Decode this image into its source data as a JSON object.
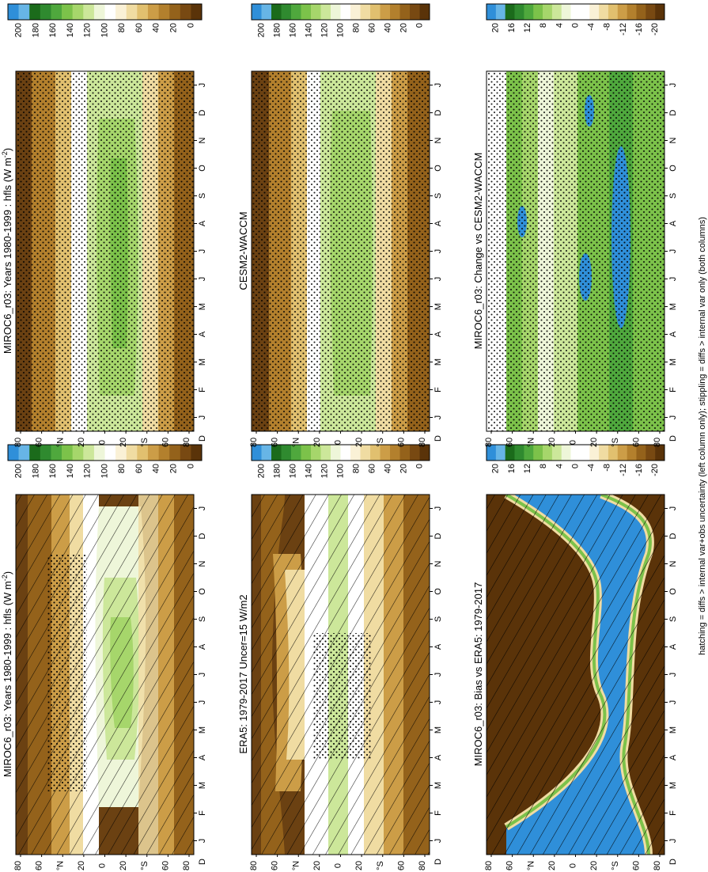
{
  "caption": "hatching = diffs > internal var+obs uncertainty (left column only); stippling = diffs > internal var only (both columns)",
  "months": [
    "J",
    "F",
    "M",
    "A",
    "M",
    "J",
    "J",
    "A",
    "S",
    "O",
    "N",
    "D",
    "J"
  ],
  "month_label_D": "D",
  "lat_labels": [
    "80",
    "60",
    "°N",
    "20",
    "0",
    "20",
    "°S",
    "60",
    "80"
  ],
  "palettes": {
    "abs": [
      "#2f8fd9",
      "#67b5e6",
      "#1b6b1b",
      "#2f8a2f",
      "#4fa83d",
      "#7cc24a",
      "#a6d66b",
      "#cce79a",
      "#eef6d9",
      "#ffffff",
      "#faf1d6",
      "#f0dca2",
      "#e1c06f",
      "#cc9d47",
      "#b3802d",
      "#94621b",
      "#784912",
      "#5a3309"
    ],
    "diff": [
      "#2f8fd9",
      "#67b5e6",
      "#1b6b1b",
      "#2f8a2f",
      "#4fa83d",
      "#7cc24a",
      "#a6d66b",
      "#cce79a",
      "#eef6d9",
      "#ffffff",
      "#ffffff",
      "#faf1d6",
      "#f0dca2",
      "#e1c06f",
      "#cc9d47",
      "#b3802d",
      "#94621b",
      "#784912",
      "#5a3309"
    ]
  },
  "panels": [
    {
      "id": "model-clim",
      "title": "MIROC6_r03: Years 1980-1999 : hfls (W m",
      "title_sup": "-2",
      "title_end": ")",
      "colorbar_ticks": [
        "200",
        "180",
        "160",
        "140",
        "120",
        "100",
        "80",
        "60",
        "40",
        "20",
        "0"
      ]
    },
    {
      "id": "model-clim-2",
      "title": "MIROC6_r03: Years 1980-1999 : hfls (W m",
      "title_sup": "-2",
      "title_end": ")",
      "colorbar_ticks": [
        "200",
        "180",
        "160",
        "140",
        "120",
        "100",
        "80",
        "60",
        "40",
        "20",
        "0"
      ]
    },
    {
      "id": "obs-clim",
      "title": "ERA5: 1979-2017 Uncer=15 W/m2",
      "title_sup": "",
      "title_end": "",
      "colorbar_ticks": [
        "200",
        "180",
        "160",
        "140",
        "120",
        "100",
        "80",
        "60",
        "40",
        "20",
        "0"
      ]
    },
    {
      "id": "ref-clim",
      "title": "CESM2-WACCM",
      "title_sup": "",
      "title_end": "",
      "colorbar_ticks": [
        "200",
        "180",
        "160",
        "140",
        "120",
        "100",
        "80",
        "60",
        "40",
        "20",
        "0"
      ]
    },
    {
      "id": "bias",
      "title": "MIROC6_r03: Bias vs ERA5: 1979-2017",
      "title_sup": "",
      "title_end": "",
      "colorbar_ticks": [
        "20",
        "16",
        "12",
        "8",
        "4",
        "0",
        "-4",
        "-8",
        "-12",
        "-16",
        "-20"
      ]
    },
    {
      "id": "change",
      "title": "MIROC6_r03: Change vs CESM2-WACCM",
      "title_sup": "",
      "title_end": "",
      "colorbar_ticks": [
        "20",
        "16",
        "12",
        "8",
        "4",
        "0",
        "-4",
        "-8",
        "-12",
        "-16",
        "-20"
      ]
    }
  ],
  "chart_data": [
    {
      "type": "heatmap",
      "title": "MIROC6_r03: Years 1980-1999 : hfls (W m-2)",
      "x": [
        "J",
        "F",
        "M",
        "A",
        "M",
        "J",
        "J",
        "A",
        "S",
        "O",
        "N",
        "D",
        "J"
      ],
      "y": [
        80,
        60,
        40,
        20,
        0,
        -20,
        -40,
        -60,
        -80
      ],
      "zlim": [
        0,
        200
      ],
      "colorbar_ticks": [
        200,
        180,
        160,
        140,
        120,
        100,
        80,
        60,
        40,
        20,
        0
      ]
    },
    {
      "type": "heatmap",
      "title": "MIROC6_r03: Years 1980-1999 : hfls (W m-2)",
      "x": [
        "J",
        "F",
        "M",
        "A",
        "M",
        "J",
        "J",
        "A",
        "S",
        "O",
        "N",
        "D",
        "J"
      ],
      "y": [
        80,
        60,
        40,
        20,
        0,
        -20,
        -40,
        -60,
        -80
      ],
      "zlim": [
        0,
        200
      ],
      "colorbar_ticks": [
        200,
        180,
        160,
        140,
        120,
        100,
        80,
        60,
        40,
        20,
        0
      ]
    },
    {
      "type": "heatmap",
      "title": "ERA5: 1979-2017 Uncer=15 W/m2",
      "x": [
        "J",
        "F",
        "M",
        "A",
        "M",
        "J",
        "J",
        "A",
        "S",
        "O",
        "N",
        "D",
        "J"
      ],
      "y": [
        80,
        60,
        40,
        20,
        0,
        -20,
        -40,
        -60,
        -80
      ],
      "zlim": [
        0,
        200
      ],
      "colorbar_ticks": [
        200,
        180,
        160,
        140,
        120,
        100,
        80,
        60,
        40,
        20,
        0
      ]
    },
    {
      "type": "heatmap",
      "title": "CESM2-WACCM",
      "x": [
        "J",
        "F",
        "M",
        "A",
        "M",
        "J",
        "J",
        "A",
        "S",
        "O",
        "N",
        "D",
        "J"
      ],
      "y": [
        80,
        60,
        40,
        20,
        0,
        -20,
        -40,
        -60,
        -80
      ],
      "zlim": [
        0,
        200
      ],
      "colorbar_ticks": [
        200,
        180,
        160,
        140,
        120,
        100,
        80,
        60,
        40,
        20,
        0
      ]
    },
    {
      "type": "heatmap",
      "title": "MIROC6_r03: Bias vs ERA5: 1979-2017",
      "x": [
        "J",
        "F",
        "M",
        "A",
        "M",
        "J",
        "J",
        "A",
        "S",
        "O",
        "N",
        "D",
        "J"
      ],
      "y": [
        80,
        60,
        40,
        20,
        0,
        -20,
        -40,
        -60,
        -80
      ],
      "zlim": [
        -20,
        20
      ],
      "colorbar_ticks": [
        20,
        16,
        12,
        8,
        4,
        0,
        -4,
        -8,
        -12,
        -16,
        -20
      ]
    },
    {
      "type": "heatmap",
      "title": "MIROC6_r03: Change vs CESM2-WACCM",
      "x": [
        "J",
        "F",
        "M",
        "A",
        "M",
        "J",
        "J",
        "A",
        "S",
        "O",
        "N",
        "D",
        "J"
      ],
      "y": [
        80,
        60,
        40,
        20,
        0,
        -20,
        -40,
        -60,
        -80
      ],
      "zlim": [
        -20,
        20
      ],
      "colorbar_ticks": [
        20,
        16,
        12,
        8,
        4,
        0,
        -4,
        -8,
        -12,
        -16,
        -20
      ]
    }
  ]
}
